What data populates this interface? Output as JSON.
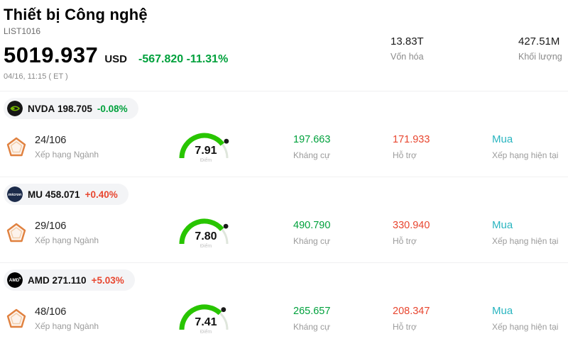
{
  "header": {
    "title": "Thiết bị Công nghệ",
    "list_id": "LIST1016",
    "price": "5019.937",
    "currency": "USD",
    "change": "-567.820 -11.31%",
    "timestamp": "04/16, 11:15 ( ET )",
    "market_cap_value": "13.83T",
    "market_cap_label": "Vốn hóa",
    "volume_value": "427.51M",
    "volume_label": "Khối lượng"
  },
  "labels": {
    "industry_rank": "Xếp hạng Ngành",
    "resistance": "Kháng cự",
    "support": "Hỗ trợ",
    "current_rating": "Xếp hạng hiện tại",
    "score": "Điểm"
  },
  "colors": {
    "up": "#e8462f",
    "down": "#00a13c",
    "buy": "#2ab5c0",
    "gauge_green": "#28c500"
  },
  "stocks": [
    {
      "ticker": "NVDA",
      "price": "198.705",
      "change": "-0.08%",
      "direction": "down",
      "logo_text": "",
      "rank": "24/106",
      "score": "7.91",
      "resistance": "197.663",
      "support": "171.933",
      "rating": "Mua"
    },
    {
      "ticker": "MU",
      "price": "458.071",
      "change": "+0.40%",
      "direction": "up",
      "logo_text": "micron",
      "rank": "29/106",
      "score": "7.80",
      "resistance": "490.790",
      "support": "330.940",
      "rating": "Mua"
    },
    {
      "ticker": "AMD",
      "price": "271.110",
      "change": "+5.03%",
      "direction": "up",
      "logo_text": "AMD",
      "rank": "48/106",
      "score": "7.41",
      "resistance": "265.657",
      "support": "208.347",
      "rating": "Mua"
    }
  ]
}
